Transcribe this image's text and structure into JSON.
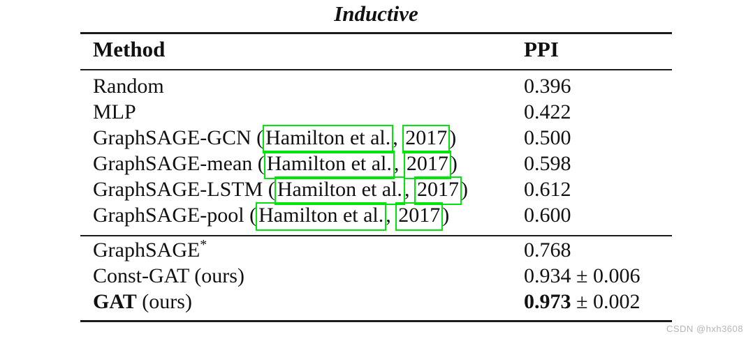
{
  "title": "Inductive",
  "watermark": "CSDN @hxh3608",
  "colors": {
    "citation_box": "#00e40a",
    "rule": "#1b1b1b",
    "text": "#111111",
    "watermark": "#b5b5b5"
  },
  "table": {
    "headers": {
      "method": "Method",
      "ppi": "PPI"
    },
    "groups": [
      {
        "rows": [
          {
            "method": [
              {
                "t": "Random"
              }
            ],
            "ppi": [
              {
                "t": "0.396"
              }
            ]
          },
          {
            "method": [
              {
                "t": "MLP"
              }
            ],
            "ppi": [
              {
                "t": "0.422"
              }
            ]
          },
          {
            "method": [
              {
                "t": "GraphSAGE-GCN ("
              },
              {
                "link": "Hamilton et al."
              },
              {
                "t": ", "
              },
              {
                "link": "2017"
              },
              {
                "t": ")"
              }
            ],
            "ppi": [
              {
                "t": "0.500"
              }
            ]
          },
          {
            "method": [
              {
                "t": "GraphSAGE-mean ("
              },
              {
                "link": "Hamilton et al."
              },
              {
                "t": ", "
              },
              {
                "link": "2017"
              },
              {
                "t": ")"
              }
            ],
            "ppi": [
              {
                "t": "0.598"
              }
            ]
          },
          {
            "method": [
              {
                "t": "GraphSAGE-LSTM ("
              },
              {
                "link": "Hamilton et al."
              },
              {
                "t": ", "
              },
              {
                "link": "2017"
              },
              {
                "t": ")"
              }
            ],
            "ppi": [
              {
                "t": "0.612"
              }
            ]
          },
          {
            "method": [
              {
                "t": "GraphSAGE-pool ("
              },
              {
                "link": "Hamilton et al."
              },
              {
                "t": ", "
              },
              {
                "link": "2017"
              },
              {
                "t": ")"
              }
            ],
            "ppi": [
              {
                "t": "0.600"
              }
            ]
          }
        ]
      },
      {
        "rows": [
          {
            "method": [
              {
                "t": "GraphSAGE"
              },
              {
                "sup": "*"
              }
            ],
            "ppi": [
              {
                "t": "0.768"
              }
            ]
          },
          {
            "method": [
              {
                "t": "Const-GAT (ours)"
              }
            ],
            "ppi": [
              {
                "t": "0.934 ± 0.006"
              }
            ]
          },
          {
            "method": [
              {
                "bold": "GAT"
              },
              {
                "t": " (ours)"
              }
            ],
            "ppi": [
              {
                "bold": "0.973"
              },
              {
                "t": " ± 0.002"
              }
            ]
          }
        ]
      }
    ]
  },
  "chart_data": {
    "type": "table",
    "title": "Inductive",
    "columns": [
      "Method",
      "PPI"
    ],
    "rows": [
      [
        "Random",
        "0.396"
      ],
      [
        "MLP",
        "0.422"
      ],
      [
        "GraphSAGE-GCN (Hamilton et al., 2017)",
        "0.500"
      ],
      [
        "GraphSAGE-mean (Hamilton et al., 2017)",
        "0.598"
      ],
      [
        "GraphSAGE-LSTM (Hamilton et al., 2017)",
        "0.612"
      ],
      [
        "GraphSAGE-pool (Hamilton et al., 2017)",
        "0.600"
      ],
      [
        "GraphSAGE*",
        "0.768"
      ],
      [
        "Const-GAT (ours)",
        "0.934 ± 0.006"
      ],
      [
        "GAT (ours)",
        "0.973 ± 0.002"
      ]
    ]
  }
}
